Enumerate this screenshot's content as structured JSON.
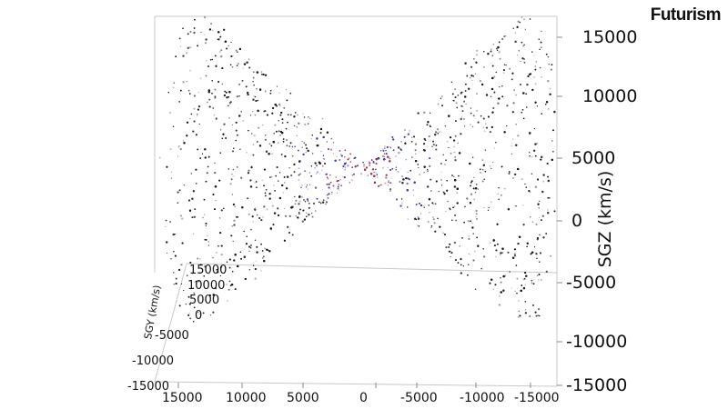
{
  "brand": "Futurism",
  "chart_data": {
    "type": "scatter",
    "title": "",
    "dimensions": "3d",
    "axes": {
      "x": {
        "label": "",
        "ticks": [
          "15000",
          "10000",
          "5000",
          "0",
          "-5000",
          "-10000",
          "-15000"
        ],
        "range": [
          15000,
          -15000
        ]
      },
      "y": {
        "label": "SGY (km/s)",
        "ticks": [
          "15000",
          "10000",
          "5000",
          "0",
          "-5000",
          "-10000",
          "-15000"
        ],
        "range": [
          15000,
          -15000
        ]
      },
      "z": {
        "label": "SGZ (km/s)",
        "ticks": [
          "15000",
          "10000",
          "5000",
          "0",
          "-5000",
          "-10000",
          "-15000"
        ],
        "range": [
          -15000,
          15000
        ]
      }
    },
    "series_colors": {
      "points": "#1a1a1a",
      "core_blue": "#3b3f9e",
      "core_red": "#9a2e3a"
    },
    "grid": false,
    "box": true
  }
}
